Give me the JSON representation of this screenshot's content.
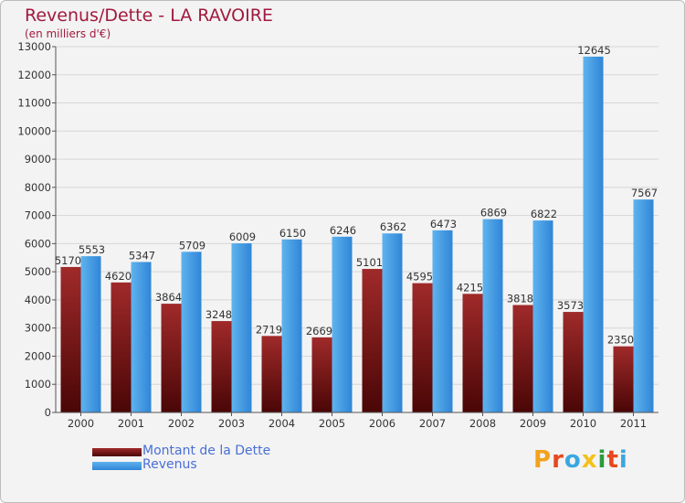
{
  "chart_data": {
    "type": "bar",
    "title": "Revenus/Dette - LA RAVOIRE",
    "subtitle": "(en milliers d'€)",
    "categories": [
      "2000",
      "2001",
      "2002",
      "2003",
      "2004",
      "2005",
      "2006",
      "2007",
      "2008",
      "2009",
      "2010",
      "2011"
    ],
    "series": [
      {
        "name": "Montant de la Dette",
        "color": "#8a1d1d",
        "values": [
          5170,
          4620,
          3864,
          3248,
          2719,
          2669,
          5101,
          4595,
          4215,
          3818,
          3573,
          2350
        ]
      },
      {
        "name": "Revenus",
        "color": "#3f9be6",
        "values": [
          5553,
          5347,
          5709,
          6009,
          6150,
          6246,
          6362,
          6473,
          6869,
          6822,
          12645,
          7567
        ]
      }
    ],
    "ylim": [
      0,
      13000
    ],
    "yticks": [
      0,
      1000,
      2000,
      3000,
      4000,
      5000,
      6000,
      7000,
      8000,
      9000,
      10000,
      11000,
      12000,
      13000
    ],
    "grid": true,
    "legend": "bottom-left",
    "xlabel": "",
    "ylabel": ""
  },
  "brand": "Proxiti"
}
